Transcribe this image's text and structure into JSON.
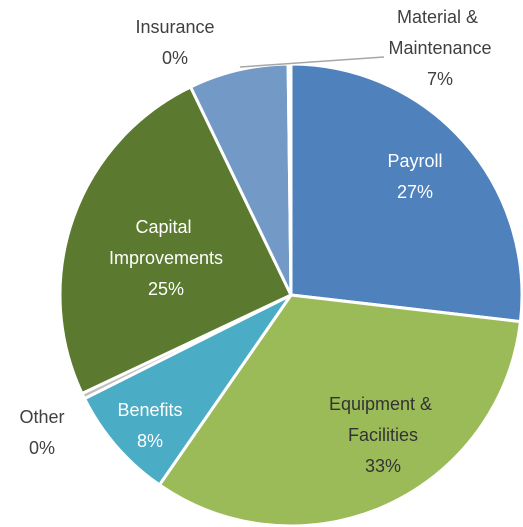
{
  "chart_data": {
    "type": "pie",
    "categories": [
      "Payroll",
      "Equipment & Facilities",
      "Benefits",
      "Other",
      "Capital Improvements",
      "Material & Maintenance",
      "Insurance"
    ],
    "values": [
      27,
      33,
      8,
      0.4,
      25,
      7,
      0.2
    ],
    "value_labels": [
      "27%",
      "33%",
      "8%",
      "0%",
      "25%",
      "7%",
      "0%"
    ],
    "colors": [
      "#4f81bd",
      "#9bbb59",
      "#4bacc6",
      "#bfbfbf",
      "#5b7a2f",
      "#7399c6",
      "#4bacc6"
    ]
  }
}
